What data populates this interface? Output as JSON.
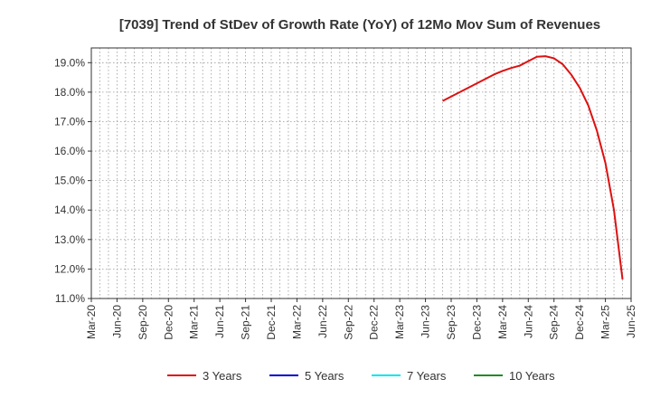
{
  "chart_data": {
    "type": "line",
    "title": "[7039]  Trend of StDev of Growth Rate (YoY) of 12Mo Mov Sum of Revenues",
    "xlabel": "",
    "ylabel": "",
    "ylim": [
      11.0,
      19.5
    ],
    "y_ticks": [
      11.0,
      12.0,
      13.0,
      14.0,
      15.0,
      16.0,
      17.0,
      18.0,
      19.0
    ],
    "y_tick_labels": [
      "11.0%",
      "12.0%",
      "13.0%",
      "14.0%",
      "15.0%",
      "16.0%",
      "17.0%",
      "18.0%",
      "19.0%"
    ],
    "x_range": [
      "2020-03",
      "2025-06"
    ],
    "x_ticks": [
      "Mar-20",
      "Jun-20",
      "Sep-20",
      "Dec-20",
      "Mar-21",
      "Jun-21",
      "Sep-21",
      "Dec-21",
      "Mar-22",
      "Jun-22",
      "Sep-22",
      "Dec-22",
      "Mar-23",
      "Jun-23",
      "Sep-23",
      "Dec-23",
      "Mar-24",
      "Jun-24",
      "Sep-24",
      "Dec-24",
      "Mar-25",
      "Jun-25"
    ],
    "grid": true,
    "legend_position": "bottom",
    "series": [
      {
        "name": "3 Years",
        "color": "#dd1111",
        "points": [
          [
            "2023-08",
            17.7
          ],
          [
            "2023-09",
            17.85
          ],
          [
            "2023-10",
            18.0
          ],
          [
            "2023-11",
            18.15
          ],
          [
            "2023-12",
            18.3
          ],
          [
            "2024-01",
            18.45
          ],
          [
            "2024-02",
            18.6
          ],
          [
            "2024-03",
            18.72
          ],
          [
            "2024-04",
            18.82
          ],
          [
            "2024-05",
            18.9
          ],
          [
            "2024-06",
            19.05
          ],
          [
            "2024-07",
            19.2
          ],
          [
            "2024-08",
            19.22
          ],
          [
            "2024-09",
            19.15
          ],
          [
            "2024-10",
            18.95
          ],
          [
            "2024-11",
            18.6
          ],
          [
            "2024-12",
            18.15
          ],
          [
            "2025-01",
            17.55
          ],
          [
            "2025-02",
            16.7
          ],
          [
            "2025-03",
            15.6
          ],
          [
            "2025-04",
            14.0
          ],
          [
            "2025-05",
            11.65
          ]
        ]
      },
      {
        "name": "5 Years",
        "color": "#0000cc",
        "points": []
      },
      {
        "name": "7 Years",
        "color": "#00e5ee",
        "points": []
      },
      {
        "name": "10 Years",
        "color": "#228b22",
        "points": []
      }
    ]
  }
}
